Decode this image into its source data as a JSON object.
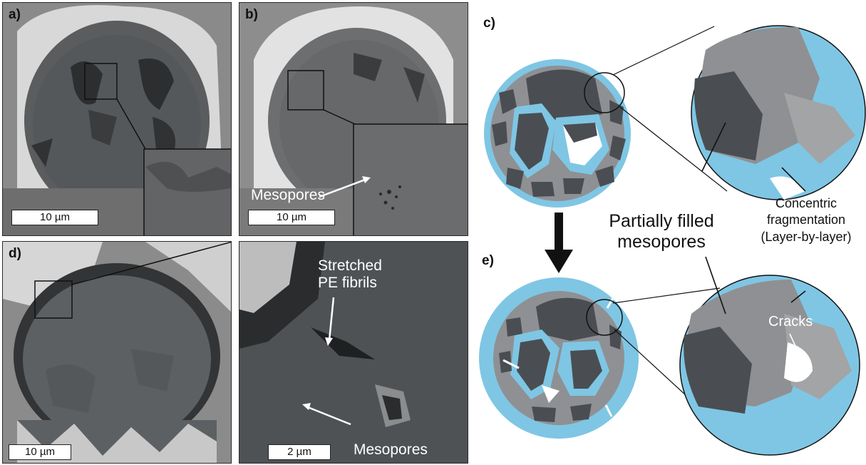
{
  "panels": {
    "a": {
      "label": "a)",
      "scalebar": "10 µm"
    },
    "b": {
      "label": "b)",
      "scalebar": "10 µm",
      "annotation": "Mesopores"
    },
    "c": {
      "label": "c)"
    },
    "d": {
      "label": "d)",
      "scalebar": "10 µm"
    },
    "d_zoom": {
      "scalebar": "2 µm",
      "annotation_fibrils": "Stretched\nPE fibrils",
      "annotation_mesopores": "Mesopores"
    },
    "e": {
      "label": "e)"
    }
  },
  "schematic": {
    "partially_filled": "Partially filled\nmesopores",
    "concentric": "Concentric\nfragmentation\n(Layer-by-layer)",
    "cracks": "Cracks"
  },
  "colors": {
    "polymer_blue": "#7fc6e4",
    "dark_grey": "#4a4e52",
    "mid_grey": "#8f9093",
    "light_grey": "#b5b6b8"
  }
}
